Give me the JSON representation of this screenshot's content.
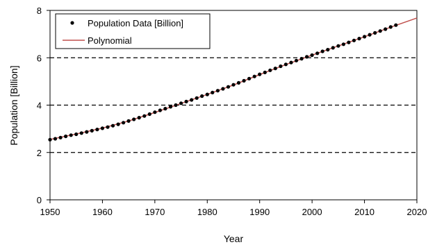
{
  "chart_data": {
    "type": "scatter",
    "xlabel": "Year",
    "ylabel": "Population [Billion]",
    "xlim": [
      1950,
      2020
    ],
    "ylim": [
      0,
      8
    ],
    "x_ticks": [
      "1950",
      "1960",
      "1970",
      "1980",
      "1990",
      "2000",
      "2010",
      "2020"
    ],
    "y_ticks": [
      "0",
      "2",
      "4",
      "6",
      "8"
    ],
    "grid": "horizontal dashed",
    "legend_position": "top-left",
    "series": [
      {
        "name": "Population Data [Billion]",
        "kind": "scatter",
        "color": "#000000",
        "x": [
          1950,
          1951,
          1952,
          1953,
          1954,
          1955,
          1956,
          1957,
          1958,
          1959,
          1960,
          1961,
          1962,
          1963,
          1964,
          1965,
          1966,
          1967,
          1968,
          1969,
          1970,
          1971,
          1972,
          1973,
          1974,
          1975,
          1976,
          1977,
          1978,
          1979,
          1980,
          1981,
          1982,
          1983,
          1984,
          1985,
          1986,
          1987,
          1988,
          1989,
          1990,
          1991,
          1992,
          1993,
          1994,
          1995,
          1996,
          1997,
          1998,
          1999,
          2000,
          2001,
          2002,
          2003,
          2004,
          2005,
          2006,
          2007,
          2008,
          2009,
          2010,
          2011,
          2012,
          2013,
          2014,
          2015,
          2016
        ],
        "y": [
          2.54,
          2.58,
          2.63,
          2.68,
          2.73,
          2.77,
          2.82,
          2.87,
          2.92,
          2.97,
          3.02,
          3.07,
          3.13,
          3.19,
          3.26,
          3.33,
          3.4,
          3.47,
          3.54,
          3.62,
          3.7,
          3.78,
          3.85,
          3.93,
          4.0,
          4.08,
          4.15,
          4.22,
          4.3,
          4.38,
          4.45,
          4.53,
          4.61,
          4.69,
          4.77,
          4.86,
          4.94,
          5.03,
          5.12,
          5.21,
          5.3,
          5.38,
          5.47,
          5.55,
          5.64,
          5.72,
          5.8,
          5.88,
          5.96,
          6.04,
          6.11,
          6.19,
          6.27,
          6.34,
          6.42,
          6.5,
          6.57,
          6.65,
          6.73,
          6.81,
          6.89,
          6.97,
          7.05,
          7.13,
          7.21,
          7.3,
          7.38
        ]
      },
      {
        "name": "Polynomial",
        "kind": "line",
        "color": "#c0504d",
        "x": [
          1950,
          1955,
          1960,
          1965,
          1970,
          1975,
          1980,
          1985,
          1990,
          1995,
          2000,
          2005,
          2010,
          2015,
          2020
        ],
        "y": [
          2.55,
          2.78,
          3.03,
          3.33,
          3.69,
          4.07,
          4.45,
          4.85,
          5.29,
          5.71,
          6.11,
          6.5,
          6.89,
          7.29,
          7.68
        ]
      }
    ]
  }
}
